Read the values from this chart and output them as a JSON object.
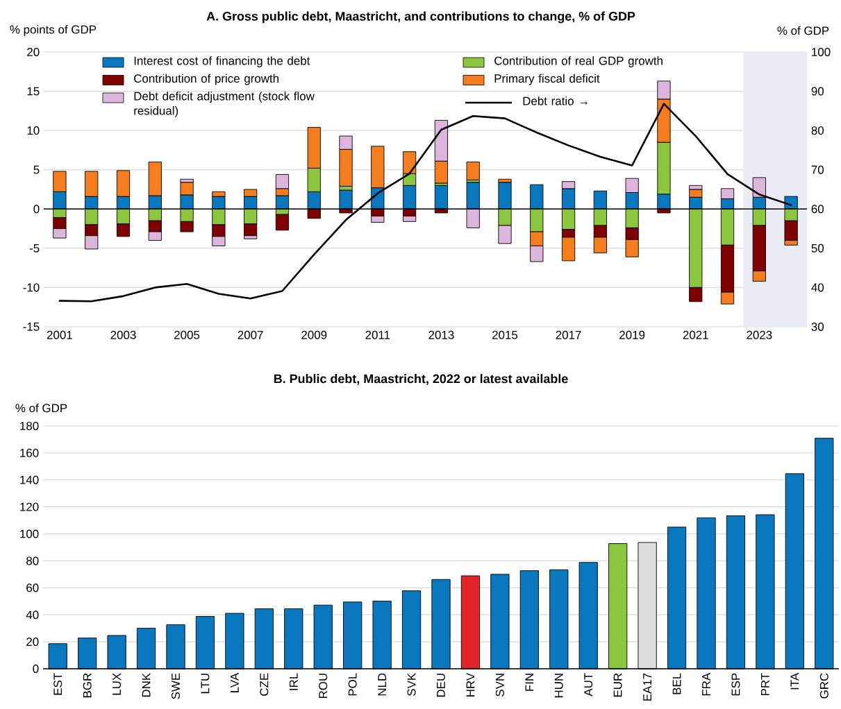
{
  "chart_data": [
    {
      "type": "bar",
      "stacked": true,
      "title": "A. Gross public debt, Maastricht, and contributions to change, % of GDP",
      "ylabel": "% points of GDP",
      "y2label": "% of GDP",
      "x": [
        2001,
        2002,
        2003,
        2004,
        2005,
        2006,
        2007,
        2008,
        2009,
        2010,
        2011,
        2012,
        2013,
        2014,
        2015,
        2016,
        2017,
        2018,
        2019,
        2020,
        2021,
        2022,
        2023,
        2024
      ],
      "xlim": [
        2000.5,
        2024.5
      ],
      "xticks": [
        2001,
        2003,
        2005,
        2007,
        2009,
        2011,
        2013,
        2015,
        2017,
        2019,
        2021,
        2023
      ],
      "ylim": [
        -15,
        20
      ],
      "yticks": [
        -15,
        -10,
        -5,
        0,
        5,
        10,
        15,
        20
      ],
      "y2lim": [
        30,
        100
      ],
      "y2ticks": [
        30,
        40,
        50,
        60,
        70,
        80,
        90,
        100
      ],
      "grid": "y",
      "legend": "top",
      "bands": [
        {
          "axis": "x",
          "from": 2022.5,
          "to": 2024.5,
          "color": "#e9ecf5"
        }
      ],
      "series": [
        {
          "name": "Interest cost of financing the debt",
          "color": "#0a78be",
          "values": [
            2.2,
            1.6,
            1.6,
            1.7,
            1.8,
            1.6,
            1.6,
            1.7,
            2.2,
            2.4,
            2.7,
            3.0,
            3.0,
            3.4,
            3.4,
            3.1,
            2.6,
            2.3,
            2.1,
            1.9,
            1.5,
            1.3,
            1.5,
            1.6
          ]
        },
        {
          "name": "Contribution of real GDP growth",
          "color": "#8cc63f",
          "values": [
            -1.1,
            -2.0,
            -1.9,
            -1.5,
            -1.6,
            -2.0,
            -1.9,
            -0.7,
            3.0,
            0.5,
            null,
            1.5,
            0.3,
            0.3,
            -2.1,
            -2.9,
            -2.6,
            -2.1,
            -2.4,
            6.6,
            -10.0,
            -4.6,
            -2.1,
            -1.5
          ]
        },
        {
          "name": "Contribution of price growth",
          "color": "#7f0000",
          "values": [
            -1.4,
            -1.4,
            -1.6,
            -1.4,
            -1.3,
            -1.5,
            -1.5,
            -2.0,
            -1.2,
            -0.5,
            -0.9,
            -0.9,
            -0.5,
            null,
            null,
            null,
            -1.0,
            -1.5,
            -1.5,
            -0.5,
            -1.8,
            -6.0,
            -5.8,
            -2.5
          ]
        },
        {
          "name": "Primary fiscal deficit",
          "color": "#f47d20",
          "values": [
            2.6,
            3.2,
            3.3,
            4.3,
            1.6,
            0.6,
            0.9,
            0.9,
            5.2,
            4.7,
            5.3,
            2.8,
            2.8,
            2.3,
            0.4,
            -1.8,
            -3.0,
            -2.0,
            -2.2,
            5.5,
            1.0,
            -1.5,
            -1.3,
            -0.6
          ]
        },
        {
          "name": "Debt deficit adjustment (stock flow residual)",
          "color": "#dcb4dc",
          "values": [
            -1.2,
            -1.7,
            null,
            -1.1,
            0.4,
            -1.2,
            -0.4,
            1.8,
            null,
            1.7,
            -0.8,
            -0.7,
            5.2,
            -2.4,
            -2.3,
            -2.0,
            0.9,
            null,
            1.8,
            2.3,
            0.5,
            1.3,
            2.5,
            null
          ]
        },
        {
          "name": "Debt ratio →",
          "type": "line",
          "axis": "y2",
          "color": "#000000",
          "values": [
            36.6,
            36.5,
            37.8,
            40.0,
            40.9,
            38.4,
            37.2,
            39.1,
            48.4,
            57.2,
            64.0,
            69.0,
            80.2,
            83.7,
            83.1,
            79.5,
            76.2,
            73.3,
            71.1,
            86.8,
            78.6,
            68.9,
            63.7,
            61.0
          ]
        }
      ]
    },
    {
      "type": "bar",
      "title": "B. Public debt, Maastricht, 2022 or latest available",
      "ylabel": "% of GDP",
      "categories": [
        "EST",
        "BGR",
        "LUX",
        "DNK",
        "SWE",
        "LTU",
        "LVA",
        "CZE",
        "IRL",
        "ROU",
        "POL",
        "NLD",
        "SVK",
        "DEU",
        "HRV",
        "SVN",
        "FIN",
        "HUN",
        "AUT",
        "EUR",
        "EA17",
        "BEL",
        "FRA",
        "ESP",
        "PRT",
        "ITA",
        "GRC"
      ],
      "values": [
        18.6,
        22.8,
        24.7,
        30.1,
        32.7,
        38.8,
        41.1,
        44.5,
        44.5,
        47.2,
        49.5,
        50.2,
        57.8,
        66.2,
        68.9,
        70.0,
        72.7,
        73.4,
        78.8,
        92.8,
        93.6,
        105.0,
        111.9,
        113.4,
        114.2,
        144.6,
        170.9
      ],
      "colors": [
        "#0a78be",
        "#0a78be",
        "#0a78be",
        "#0a78be",
        "#0a78be",
        "#0a78be",
        "#0a78be",
        "#0a78be",
        "#0a78be",
        "#0a78be",
        "#0a78be",
        "#0a78be",
        "#0a78be",
        "#0a78be",
        "#e3242b",
        "#0a78be",
        "#0a78be",
        "#0a78be",
        "#0a78be",
        "#8cc63f",
        "#dcdcdc",
        "#0a78be",
        "#0a78be",
        "#0a78be",
        "#0a78be",
        "#0a78be",
        "#0a78be"
      ],
      "ylim": [
        0,
        180
      ],
      "yticks": [
        0,
        20,
        40,
        60,
        80,
        100,
        120,
        140,
        160,
        180
      ],
      "grid": "y"
    }
  ]
}
